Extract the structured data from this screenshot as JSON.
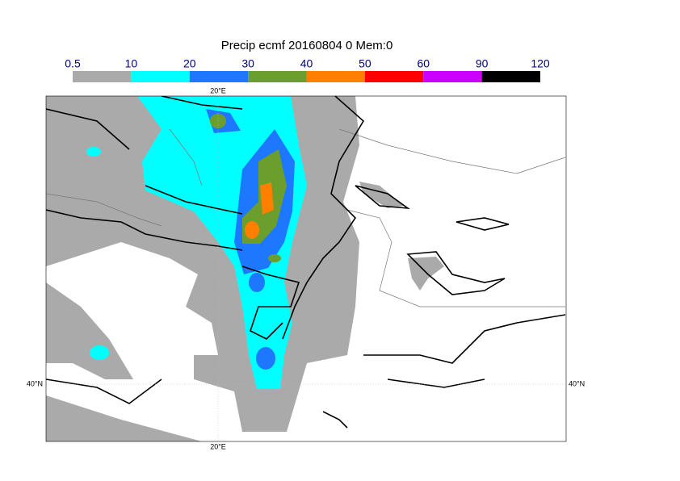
{
  "title": "Precip ecmf 20160804 0 Mem:0",
  "colorbar": {
    "bins": [
      0.5,
      10,
      20,
      30,
      40,
      50,
      60,
      90,
      120
    ],
    "colors": [
      "#aaaaaa",
      "#00ffff",
      "#1e78ff",
      "#6b9e2c",
      "#ff8000",
      "#ff0000",
      "#cc00ff",
      "#000000"
    ]
  },
  "map": {
    "lon_label": "20°E",
    "lat_label": "40°N"
  }
}
